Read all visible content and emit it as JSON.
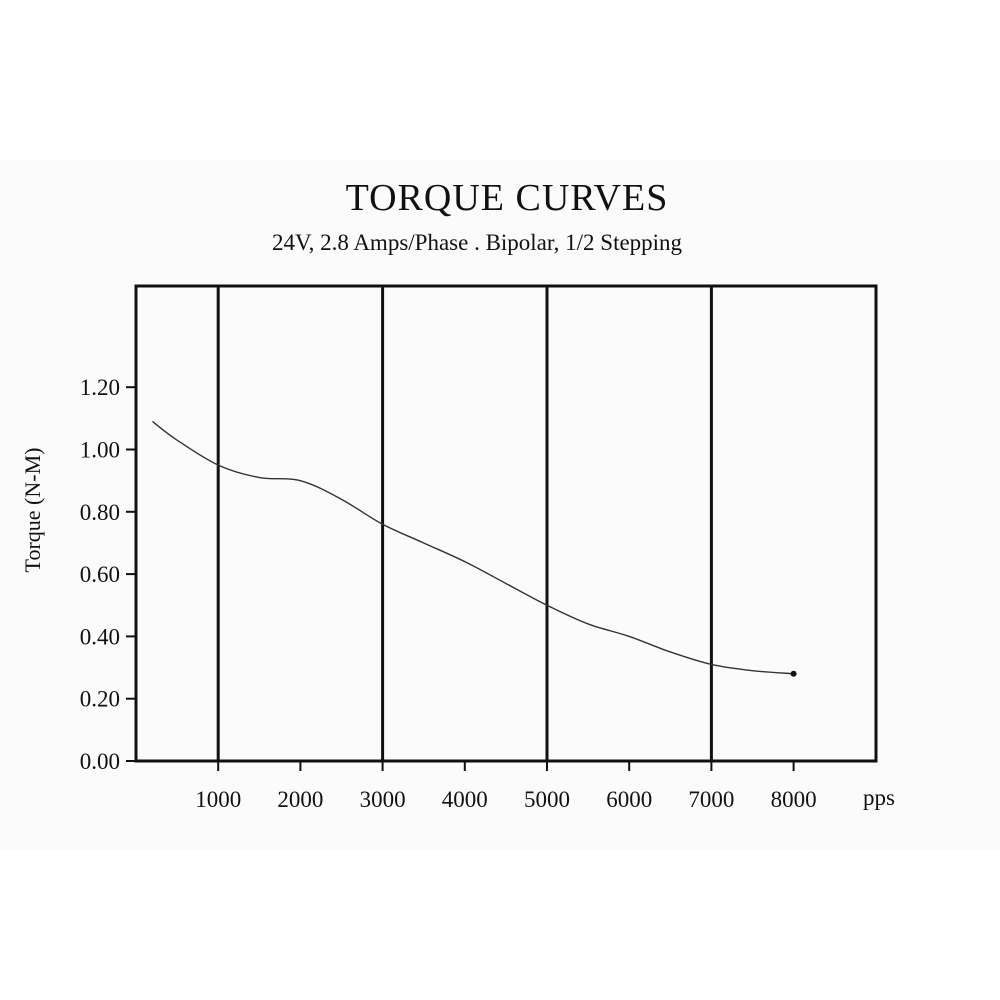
{
  "chart_data": {
    "type": "line",
    "title": "TORQUE CURVES",
    "subtitle": "24V, 2.8 Amps/Phase . Bipolar, 1/2 Stepping",
    "ylabel": "Torque (N-M)",
    "xunit": "pps",
    "xlim": [
      0,
      9000
    ],
    "ylim": [
      0,
      1.5
    ],
    "x_ticks": [
      1000,
      2000,
      3000,
      4000,
      5000,
      6000,
      7000,
      8000
    ],
    "x_tick_labels": [
      "1000",
      "2000",
      "3000",
      "4000",
      "5000",
      "6000",
      "7000",
      "8000"
    ],
    "y_ticks": [
      0,
      0.2,
      0.4,
      0.6,
      0.8,
      1.0,
      1.2
    ],
    "y_tick_labels": [
      "0.00",
      "0.20",
      "0.40",
      "0.60",
      "0.80",
      "1.00",
      "1.20"
    ],
    "vertical_grid_at": [
      1000,
      3000,
      5000,
      7000
    ],
    "grid": "vertical",
    "line_color": "#333333",
    "series": [
      {
        "x": [
          200,
          500,
          1000,
          1500,
          2000,
          2500,
          3000,
          3500,
          4000,
          4500,
          5000,
          5500,
          6000,
          6500,
          7000,
          7500,
          8000
        ],
        "values": [
          1.09,
          1.03,
          0.95,
          0.91,
          0.9,
          0.84,
          0.76,
          0.7,
          0.64,
          0.57,
          0.5,
          0.44,
          0.4,
          0.35,
          0.31,
          0.29,
          0.28
        ]
      }
    ]
  }
}
